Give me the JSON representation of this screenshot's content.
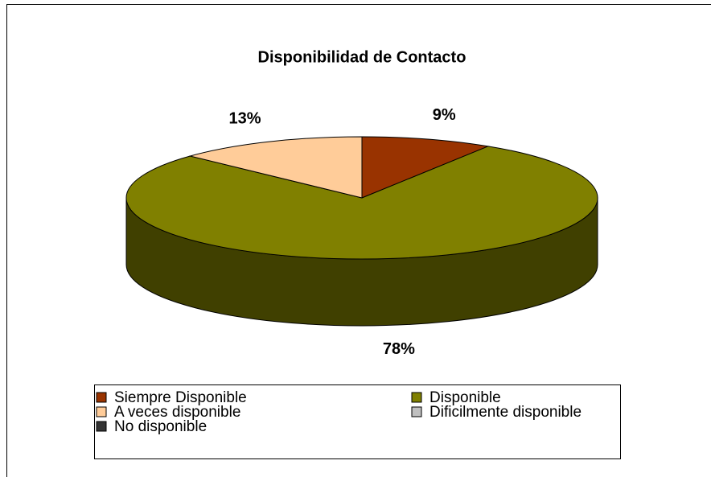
{
  "chart_data": {
    "type": "pie3d",
    "title": "Disponibilidad de Contacto",
    "categories": [
      "Siempre Disponible",
      "Disponible",
      "A veces disponible",
      "Dificilmente disponible",
      "No disponible"
    ],
    "values": [
      9,
      78,
      13,
      0,
      0
    ],
    "value_labels": [
      "9%",
      "78%",
      "13%",
      null,
      null
    ],
    "colors": [
      "#993300",
      "#808000",
      "#ffcc99",
      "#c0c0c0",
      "#333333"
    ],
    "legend": "bottom"
  }
}
